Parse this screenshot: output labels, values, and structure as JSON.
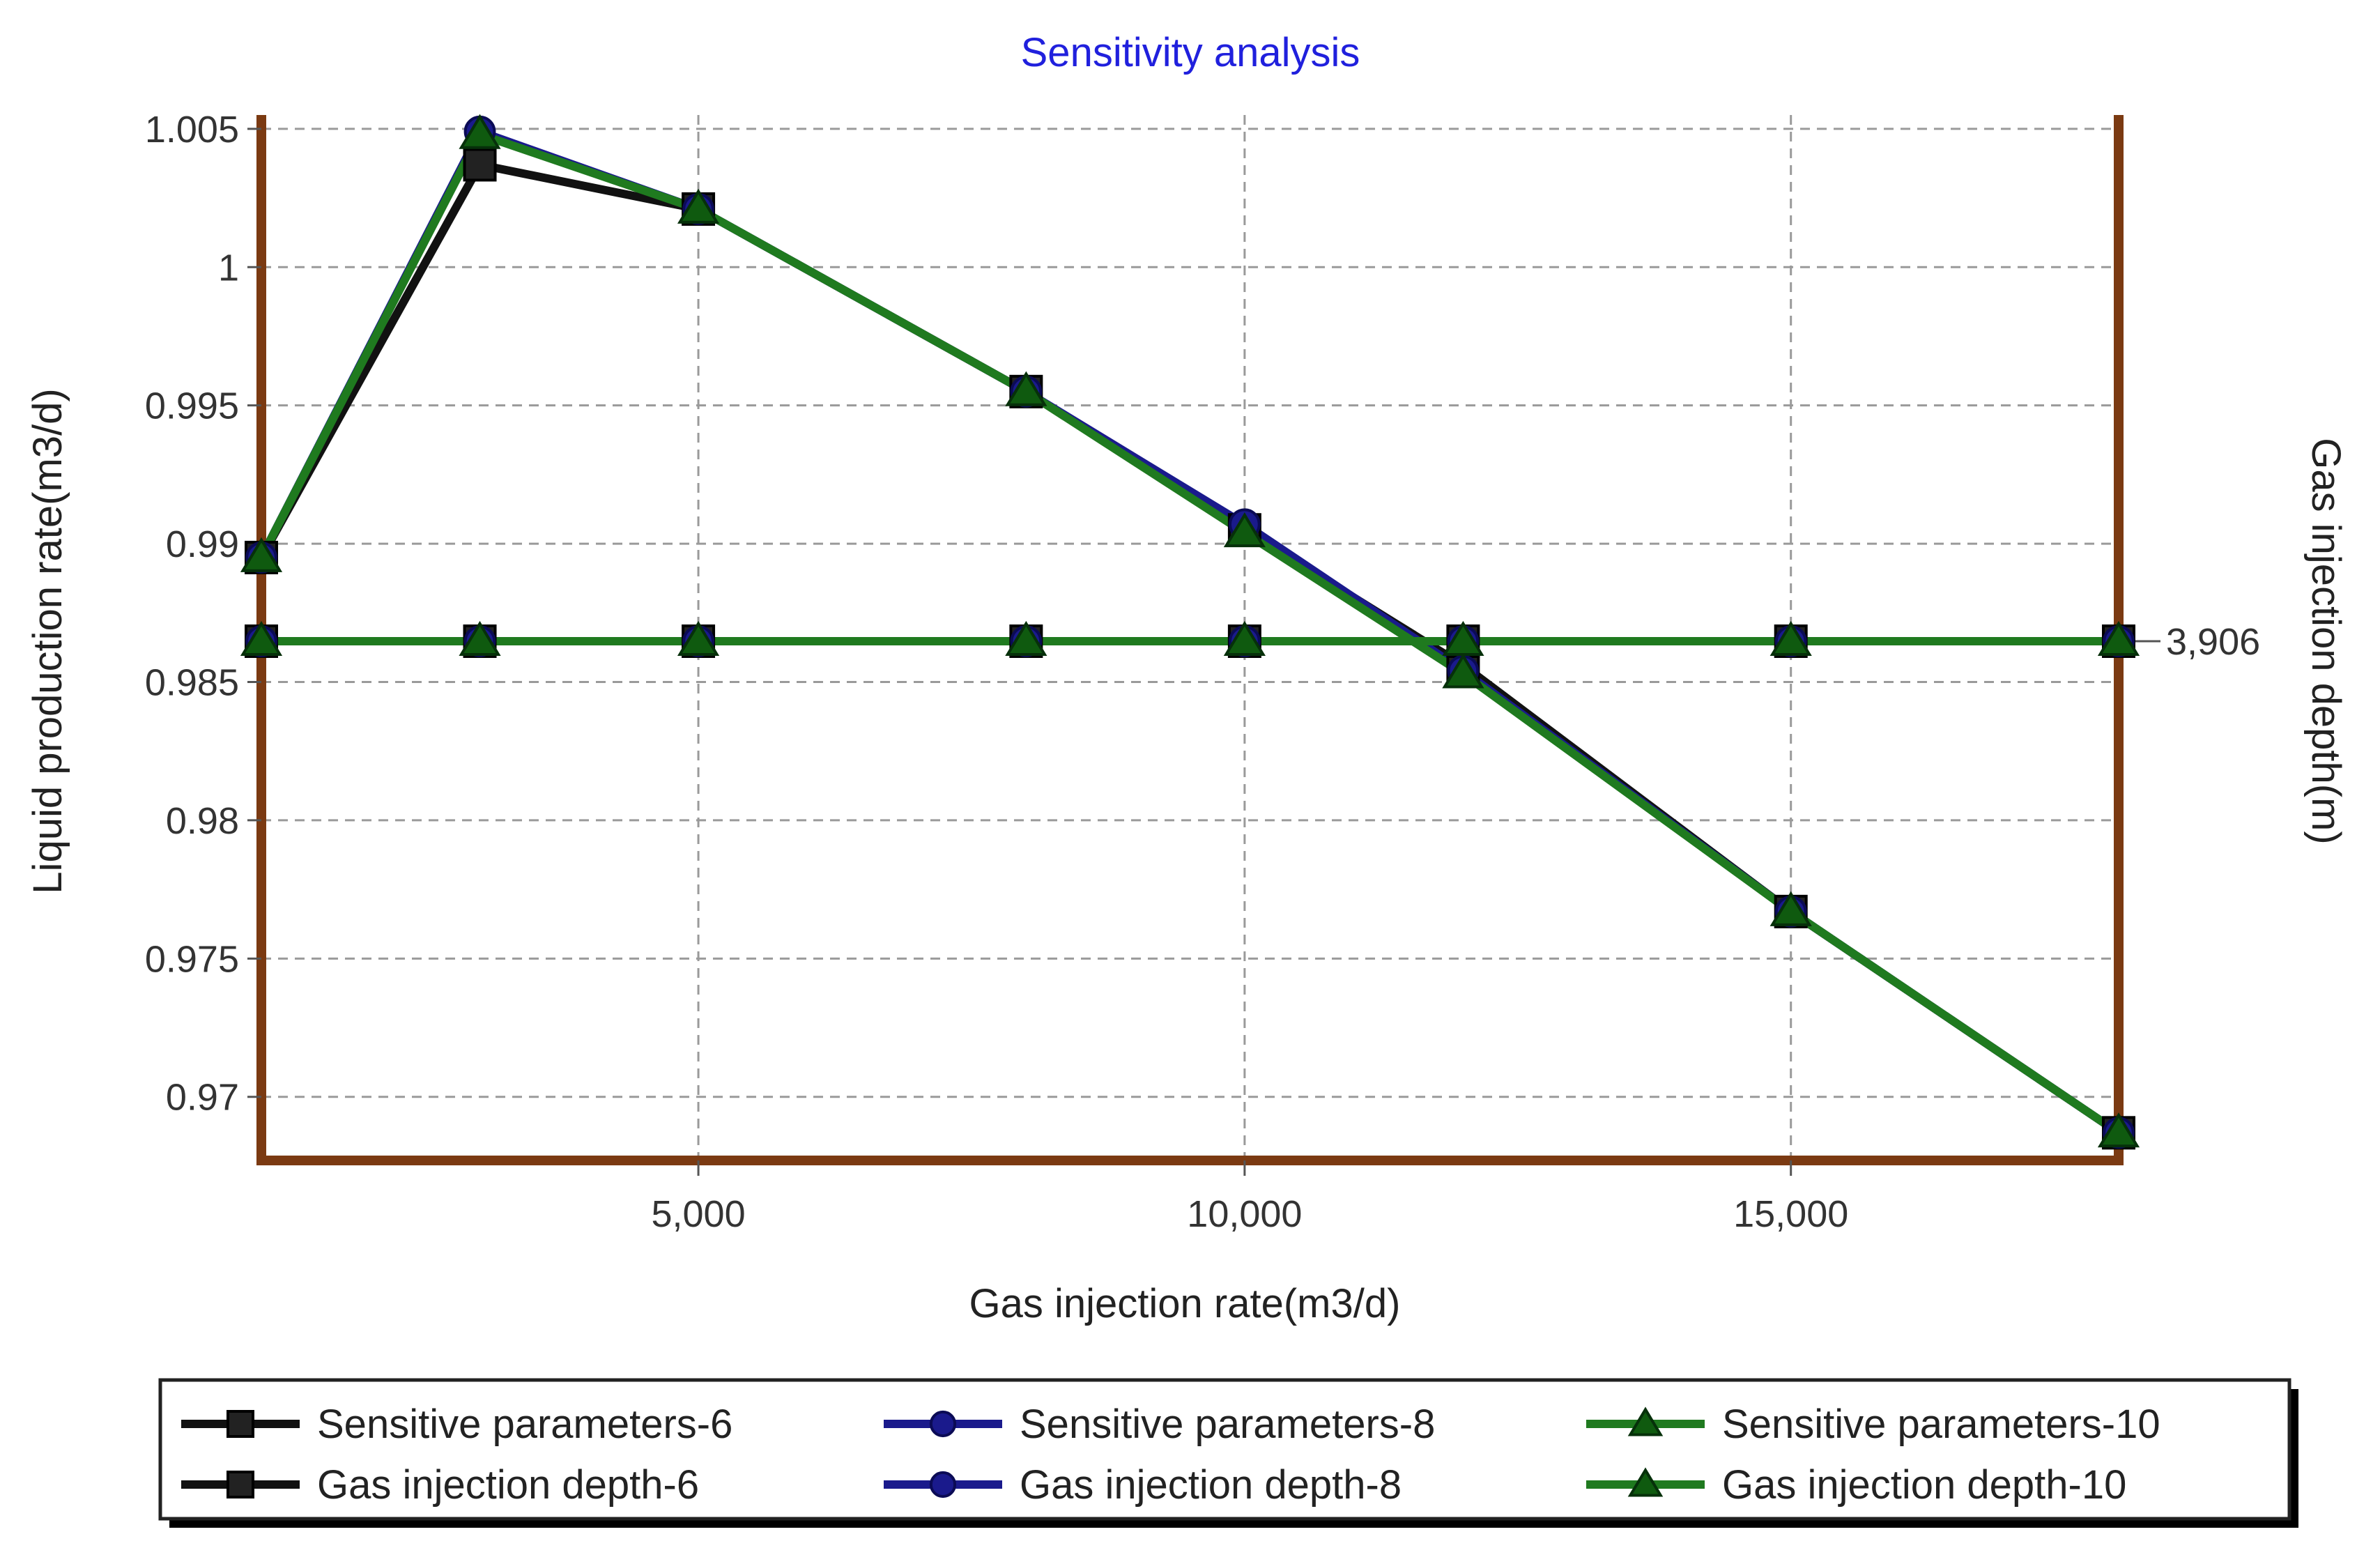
{
  "chart_data": {
    "type": "line",
    "title": "Sensitivity analysis",
    "xlabel": "Gas injection rate(m3/d)",
    "ylabel": "Liquid production rate(m3/d)",
    "y2label": "Gas injection depth(m)",
    "xlim": [
      1000,
      18000
    ],
    "ylim": [
      0.9677,
      1.0055
    ],
    "x_ticks": [
      5000,
      10000,
      15000
    ],
    "x_tick_labels": [
      "5,000",
      "10,000",
      "15,000"
    ],
    "y_ticks": [
      0.97,
      0.975,
      0.98,
      0.985,
      0.99,
      0.995,
      1.0,
      1.005
    ],
    "y_tick_labels": [
      "0.97",
      "0.975",
      "0.98",
      "0.985",
      "0.99",
      "0.995",
      "1",
      "1.005"
    ],
    "y2_tick_value": 3906,
    "y2_tick_label": "3,906",
    "grid": true,
    "legend_position": "bottom",
    "x": [
      1000,
      3000,
      5000,
      8000,
      10000,
      12000,
      15000,
      18000
    ],
    "series": [
      {
        "name": "Sensitive parameters-6",
        "axis": "left",
        "marker": "square",
        "color": "#111111",
        "values": [
          0.9895,
          1.0037,
          1.0021,
          0.9955,
          0.9905,
          0.9856,
          0.9767,
          0.9687
        ]
      },
      {
        "name": "Gas injection depth-6",
        "axis": "right",
        "marker": "square",
        "color": "#111111",
        "values": [
          3906,
          3906,
          3906,
          3906,
          3906,
          3906,
          3906,
          3906
        ]
      },
      {
        "name": "Sensitive parameters-8",
        "axis": "left",
        "marker": "circle",
        "color": "#1a1a8c",
        "values": [
          0.9895,
          1.0049,
          1.0021,
          0.9955,
          0.9907,
          0.9854,
          0.9767,
          0.9687
        ]
      },
      {
        "name": "Gas injection depth-8",
        "axis": "right",
        "marker": "circle",
        "color": "#1a1a8c",
        "values": [
          3906,
          3906,
          3906,
          3906,
          3906,
          3906,
          3906,
          3906
        ]
      },
      {
        "name": "Sensitive parameters-10",
        "axis": "left",
        "marker": "triangle",
        "color": "#1f7a1f",
        "values": [
          0.9895,
          1.0048,
          1.0021,
          0.9955,
          0.9904,
          0.9853,
          0.9767,
          0.9687
        ]
      },
      {
        "name": "Gas injection depth-10",
        "axis": "right",
        "marker": "triangle",
        "color": "#1f7a1f",
        "values": [
          3906,
          3906,
          3906,
          3906,
          3906,
          3906,
          3906,
          3906
        ]
      }
    ],
    "legend": [
      "Sensitive parameters-6",
      "Sensitive parameters-8",
      "Sensitive parameters-10",
      "Gas injection depth-6",
      "Gas injection depth-8",
      "Gas injection depth-10"
    ],
    "colors": {
      "frame": "#7b3a12",
      "grid": "#9a9a9a",
      "title": "#2020dd",
      "marker_fill_green": "#0f5a0f"
    }
  }
}
